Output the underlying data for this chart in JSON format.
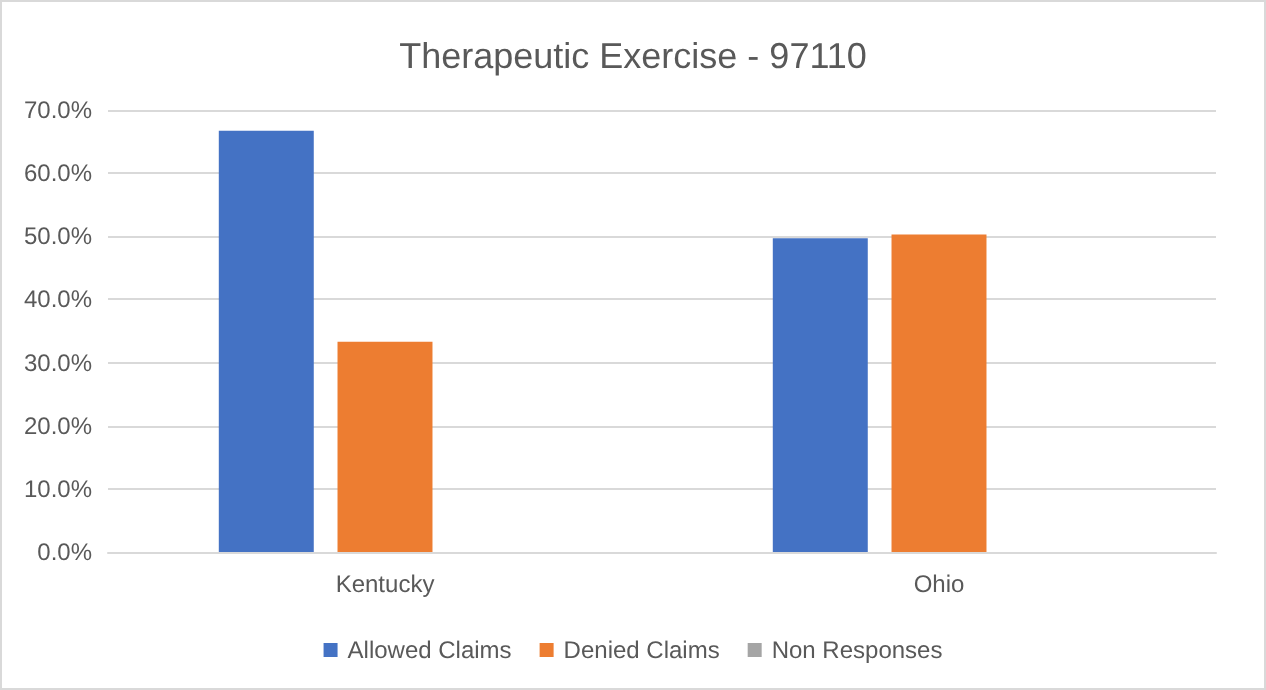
{
  "chart_data": {
    "type": "bar",
    "title": "Therapeutic Exercise - 97110",
    "categories": [
      "Kentucky",
      "Ohio"
    ],
    "series": [
      {
        "name": "Allowed Claims",
        "color": "#4472c4",
        "values": [
          66.7,
          49.7
        ]
      },
      {
        "name": "Denied Claims",
        "color": "#ed7d31",
        "values": [
          33.3,
          50.3
        ]
      },
      {
        "name": "Non Responses",
        "color": "#a5a5a5",
        "values": [
          0,
          0
        ]
      }
    ],
    "ylim": [
      0,
      70
    ],
    "yticks": [
      {
        "value": 0,
        "label": "0.0%"
      },
      {
        "value": 10,
        "label": "10.0%"
      },
      {
        "value": 20,
        "label": "20.0%"
      },
      {
        "value": 30,
        "label": "30.0%"
      },
      {
        "value": 40,
        "label": "40.0%"
      },
      {
        "value": 50,
        "label": "50.0%"
      },
      {
        "value": 60,
        "label": "60.0%"
      },
      {
        "value": 70,
        "label": "70.0%"
      }
    ],
    "grid": "y",
    "legend": "bottom"
  }
}
